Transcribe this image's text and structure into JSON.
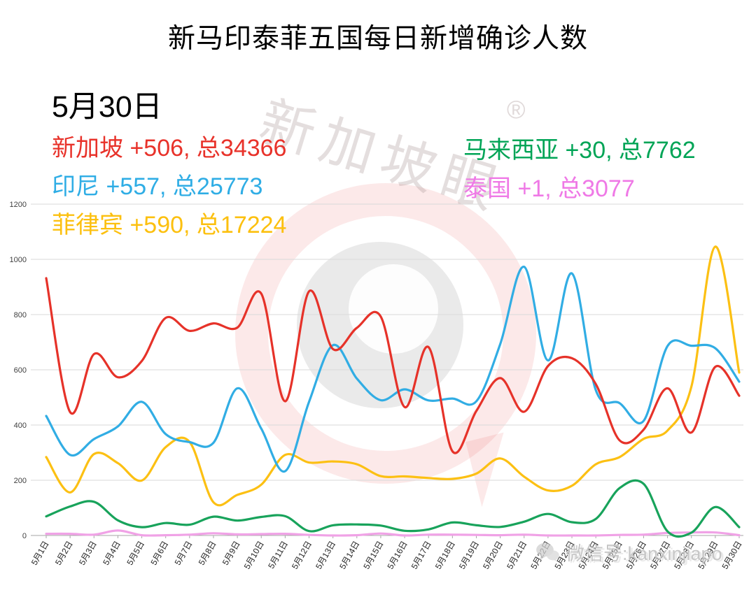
{
  "title": "新马印泰菲五国每日新增确诊人数",
  "date_label": "5月30日",
  "legend": [
    {
      "country": "新加坡",
      "text": "新加坡 +506, 总34366",
      "color": "#e8322a"
    },
    {
      "country": "马来西亚",
      "text": "马来西亚 +30, 总7762",
      "color": "#00a456"
    },
    {
      "country": "印尼",
      "text": "印尼 +557, 总25773",
      "color": "#2fade5"
    },
    {
      "country": "泰国",
      "text": "泰国 +1, 总3077",
      "color": "#ef79e6"
    },
    {
      "country": "菲律宾",
      "text": "菲律宾 +590, 总17224",
      "color": "#fcc00f"
    }
  ],
  "watermark": {
    "brand": "新加坡眼",
    "registered": "®"
  },
  "wechat_label": "微信号:kanxinjiapo",
  "chart_data": {
    "type": "line",
    "title": "新马印泰菲五国每日新增确诊人数",
    "xlabel": "",
    "ylabel": "",
    "ylim": [
      0,
      1200
    ],
    "yticks": [
      0,
      200,
      400,
      600,
      800,
      1000,
      1200
    ],
    "grid": true,
    "legend_position": "top",
    "x": [
      "5月1日",
      "5月2日",
      "5月3日",
      "5月4日",
      "5月5日",
      "5月6日",
      "5月7日",
      "5月8日",
      "5月9日",
      "5月10日",
      "5月11日",
      "5月12日",
      "5月13日",
      "5月14日",
      "5月15日",
      "5月16日",
      "5月17日",
      "5月18日",
      "5月19日",
      "5月20日",
      "5月21日",
      "5月22日",
      "5月23日",
      "5月24日",
      "5月25日",
      "5月26日",
      "5月27日",
      "5月28日",
      "5月29日",
      "5月30日"
    ],
    "series": [
      {
        "name": "泰国",
        "color": "#f0a2e6",
        "values": [
          6,
          6,
          3,
          18,
          1,
          1,
          3,
          8,
          4,
          5,
          6,
          2,
          0,
          1,
          7,
          0,
          3,
          3,
          2,
          1,
          3,
          0,
          0,
          0,
          2,
          3,
          9,
          11,
          11,
          1
        ]
      },
      {
        "name": "马来西亚",
        "color": "#18a35b",
        "values": [
          69,
          105,
          122,
          55,
          30,
          45,
          39,
          68,
          54,
          67,
          70,
          16,
          37,
          40,
          36,
          17,
          22,
          47,
          37,
          31,
          50,
          78,
          48,
          60,
          172,
          187,
          15,
          10,
          103,
          30
        ]
      },
      {
        "name": "菲律宾",
        "color": "#fcc013",
        "values": [
          284,
          156,
          295,
          262,
          199,
          320,
          339,
          120,
          147,
          184,
          292,
          264,
          268,
          258,
          215,
          214,
          208,
          205,
          224,
          279,
          213,
          163,
          180,
          258,
          284,
          350,
          380,
          539,
          1046,
          590
        ]
      },
      {
        "name": "印尼",
        "color": "#31ade4",
        "values": [
          433,
          292,
          349,
          395,
          484,
          367,
          338,
          336,
          533,
          387,
          233,
          484,
          689,
          568,
          490,
          529,
          489,
          496,
          486,
          693,
          973,
          634,
          949,
          526,
          479,
          415,
          686,
          687,
          678,
          557
        ]
      },
      {
        "name": "新加坡",
        "color": "#e63229",
        "values": [
          932,
          447,
          657,
          573,
          632,
          788,
          741,
          768,
          753,
          876,
          486,
          884,
          675,
          752,
          793,
          465,
          682,
          305,
          451,
          570,
          448,
          614,
          642,
          548,
          344,
          383,
          533,
          373,
          611,
          506
        ]
      }
    ]
  }
}
